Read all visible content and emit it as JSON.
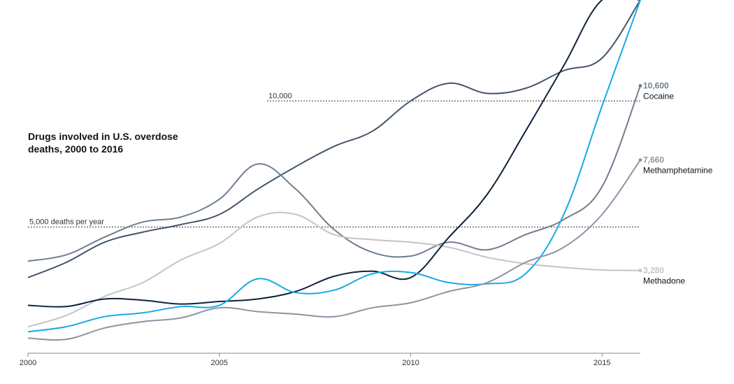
{
  "chart_data": {
    "type": "line",
    "title": "Drugs involved in U.S. overdose deaths, 2000 to 2016",
    "xlabel": "",
    "ylabel": "",
    "x": [
      2000,
      2001,
      2002,
      2003,
      2004,
      2005,
      2006,
      2007,
      2008,
      2009,
      2010,
      2011,
      2012,
      2013,
      2014,
      2015,
      2016
    ],
    "xlim": [
      2000,
      2016
    ],
    "ylim": [
      0,
      14000
    ],
    "x_ticks": [
      "2000",
      "2005",
      "2010",
      "2015"
    ],
    "reference_lines": [
      {
        "value": 10000,
        "label": "10,000"
      },
      {
        "value": 5000,
        "label": "5,000 deaths per year"
      }
    ],
    "series": [
      {
        "key": "s_a",
        "color": "#44556a",
        "values": [
          3000,
          3600,
          4400,
          4800,
          5100,
          5500,
          6500,
          7400,
          8200,
          8800,
          10000,
          10700,
          10300,
          10500,
          11200,
          11700,
          14000
        ]
      },
      {
        "key": "s_b",
        "color": "#6e7e90",
        "values": [
          3650,
          3900,
          4600,
          5200,
          5400,
          6100,
          7500,
          6500,
          4900,
          4000,
          3850,
          4400,
          4100,
          4700,
          5300,
          6600,
          10600
        ],
        "end_value": "10,600",
        "end_label": "Cocaine"
      },
      {
        "key": "s_c",
        "color": "#c4c4c4",
        "values": [
          1050,
          1500,
          2250,
          2800,
          3700,
          4350,
          5400,
          5500,
          4700,
          4500,
          4400,
          4200,
          3800,
          3550,
          3400,
          3300,
          3280
        ],
        "end_value": "3,280",
        "end_label": "Methadone"
      },
      {
        "key": "s_d",
        "color": "#0f2238",
        "values": [
          1900,
          1850,
          2150,
          2100,
          1950,
          2050,
          2150,
          2450,
          3050,
          3250,
          3000,
          4600,
          6300,
          8800,
          11400,
          14000,
          14000
        ]
      },
      {
        "key": "s_e",
        "color": "#1aa9e6",
        "values": [
          850,
          1050,
          1450,
          1600,
          1850,
          1900,
          2950,
          2400,
          2500,
          3150,
          3200,
          2800,
          2750,
          3150,
          5500,
          9800,
          14000
        ]
      },
      {
        "key": "s_f",
        "color": "#8a96a4",
        "values": [
          600,
          550,
          1000,
          1250,
          1400,
          1800,
          1650,
          1550,
          1450,
          1800,
          2000,
          2450,
          2800,
          3600,
          4200,
          5500,
          7660
        ],
        "end_value": "7,660",
        "end_label": "Methamphetamine"
      }
    ]
  }
}
